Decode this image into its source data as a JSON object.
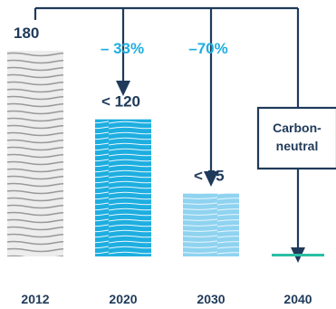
{
  "colors": {
    "navy": "#1f3a5a",
    "bar_2012": "#9a9a9a",
    "bar_2020": "#1eaee0",
    "bar_2030": "#8fd3f0",
    "bar_2040": "#2bbfa4",
    "percent": "#1eaee0"
  },
  "chart_data": {
    "type": "bar",
    "categories": [
      "2012",
      "2020",
      "2030",
      "2040"
    ],
    "values": [
      180,
      120,
      55,
      0
    ],
    "value_labels": [
      "180",
      "< 120",
      "< 55",
      ""
    ],
    "reductions": [
      {
        "to": "2020",
        "label": "– 33%"
      },
      {
        "to": "2030",
        "label": "–70%"
      }
    ],
    "annotation_box": {
      "to": "2040",
      "lines": [
        "Carbon-",
        "neutral"
      ]
    },
    "title": "",
    "xlabel": "",
    "ylabel": "",
    "ylim": [
      0,
      180
    ],
    "grid": false,
    "legend": "none"
  }
}
